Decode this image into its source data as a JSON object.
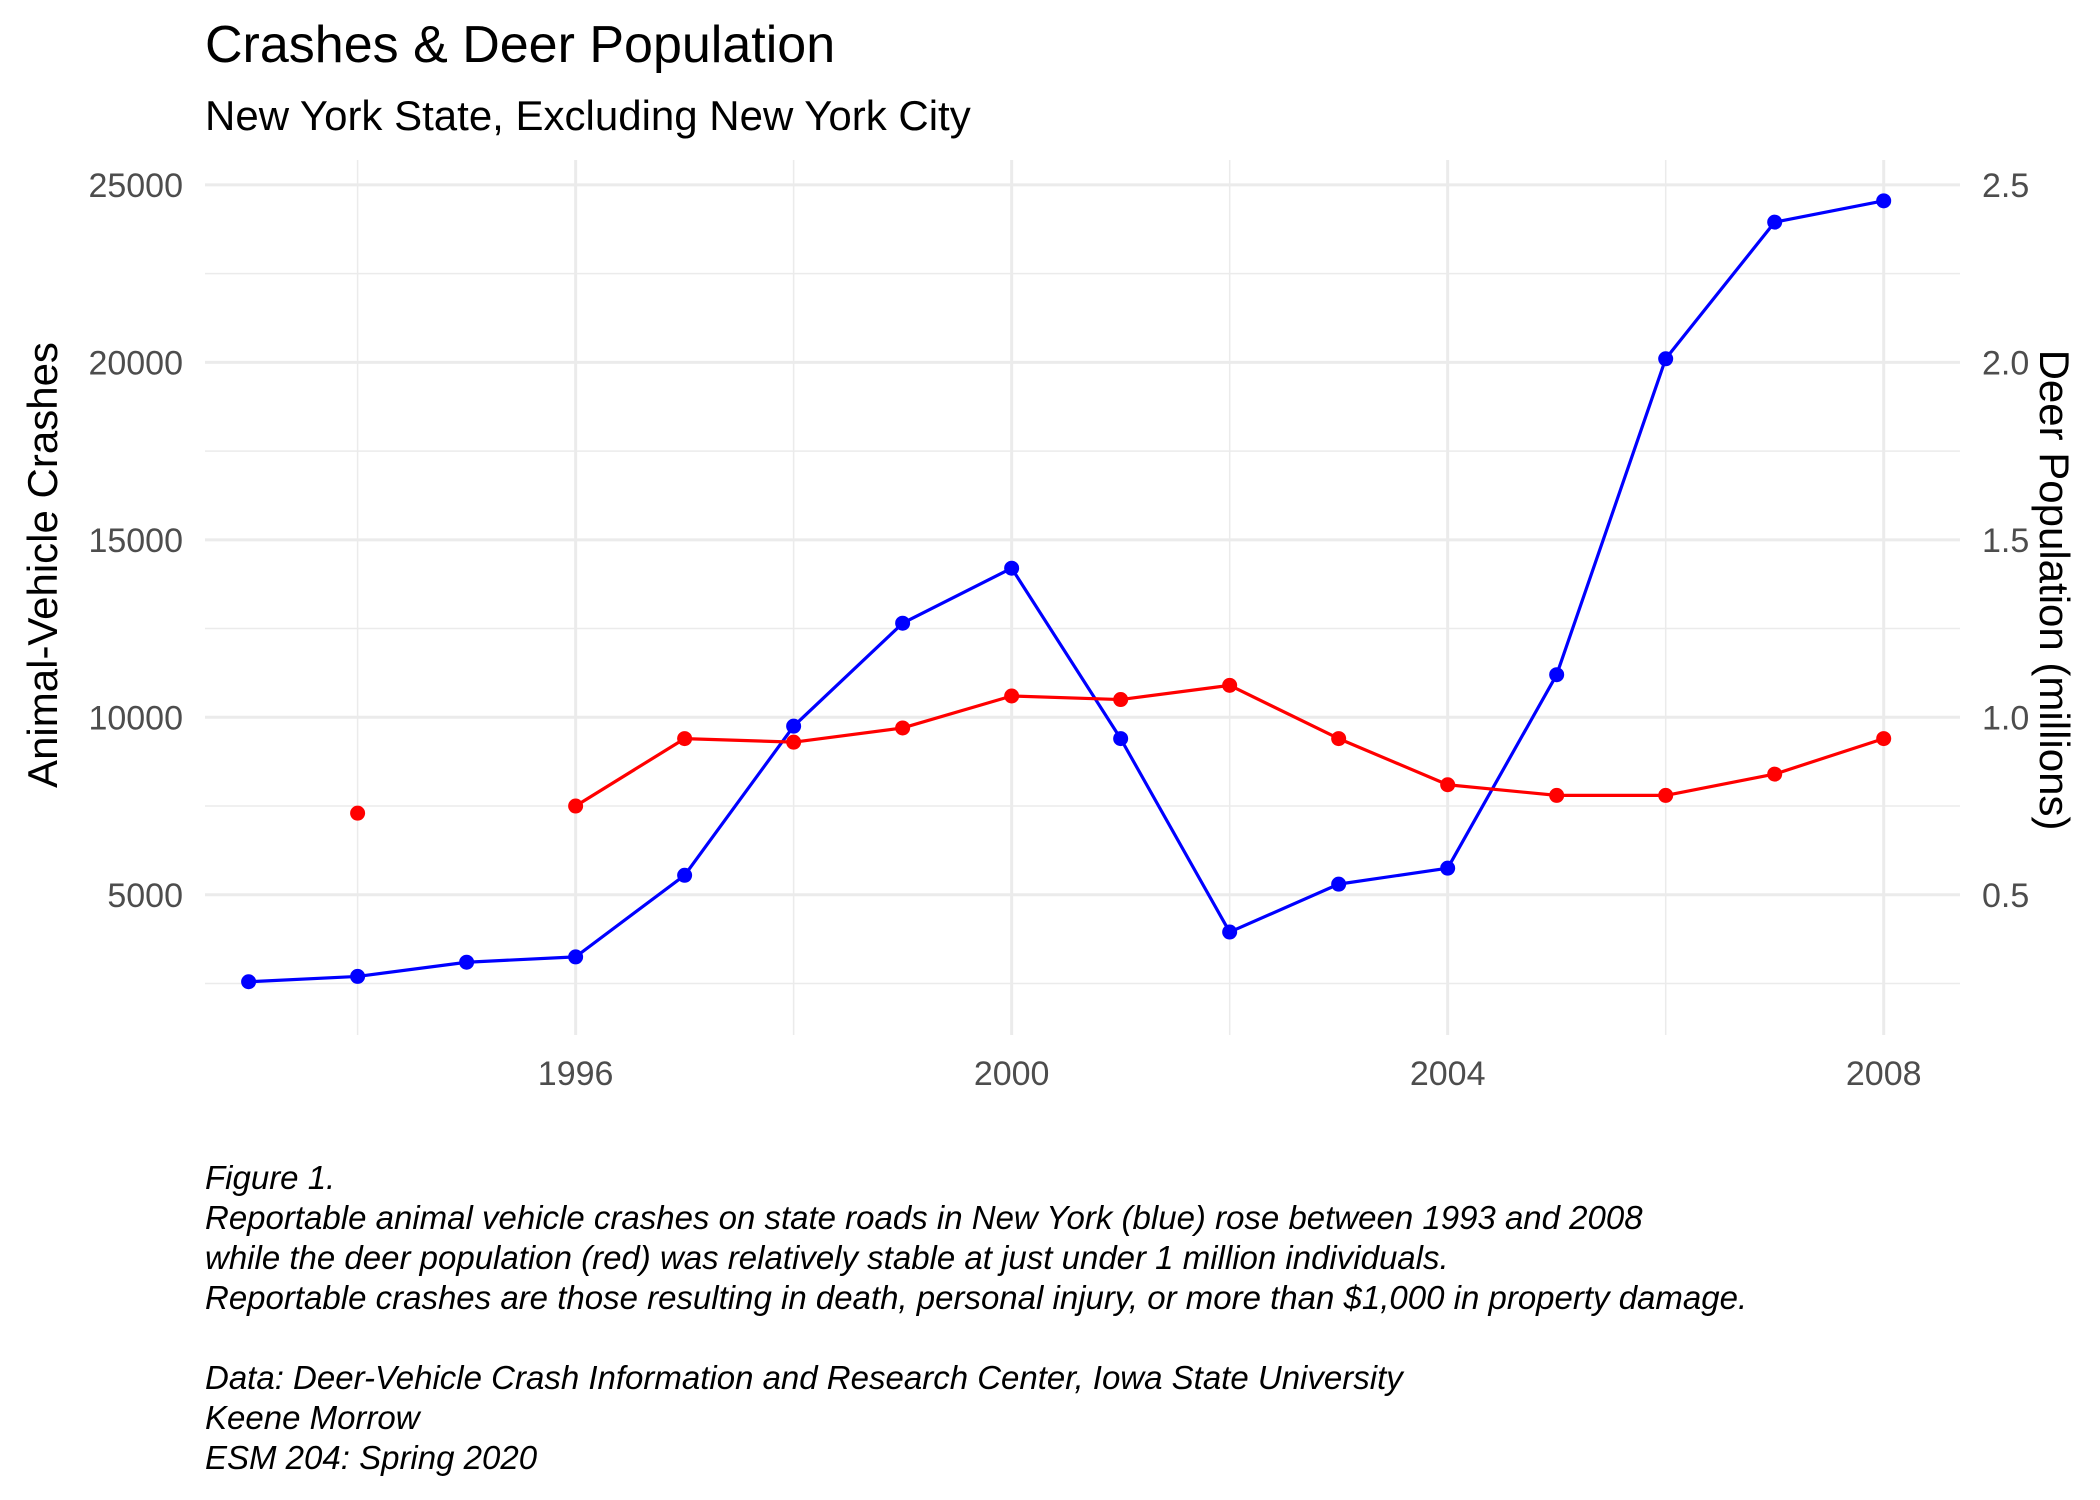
{
  "chart_data": {
    "type": "line",
    "title": "Crashes & Deer Population",
    "subtitle": "New York State, Excluding New York City",
    "xlabel": "",
    "ylabel": "Animal-Vehicle Crashes",
    "y2label": "Deer Population (millions)",
    "x_ticks": [
      1996,
      2000,
      2004,
      2008
    ],
    "y_ticks": [
      5000,
      10000,
      15000,
      20000,
      25000
    ],
    "y2_ticks": [
      "0.5",
      "1.0",
      "1.5",
      "2.0",
      "2.5"
    ],
    "xlim": [
      1992.6,
      2008.7
    ],
    "ylim": [
      1050,
      25700
    ],
    "y2lim": [
      0.105,
      2.57
    ],
    "grid": true,
    "series": [
      {
        "axis": "left",
        "color": "#0000ff",
        "x": [
          1993,
          1994,
          1995,
          1996,
          1997,
          1998,
          1999,
          2000,
          2001,
          2002,
          2003,
          2004,
          2005,
          2006,
          2007,
          2008
        ],
        "values": [
          2550,
          2700,
          3100,
          3250,
          5550,
          9750,
          12650,
          14200,
          9400,
          3950,
          5300,
          5750,
          11200,
          20100,
          23950,
          24550
        ]
      },
      {
        "axis": "right",
        "color": "#ff0000",
        "x": [
          1994,
          1996,
          1997,
          1998,
          1999,
          2000,
          2001,
          2002,
          2003,
          2004,
          2005,
          2006,
          2007,
          2008
        ],
        "values": [
          0.73,
          0.75,
          0.94,
          0.93,
          0.97,
          1.06,
          1.05,
          1.09,
          0.94,
          0.81,
          0.78,
          0.78,
          0.84,
          0.94
        ],
        "gaps_after_x": [
          1994
        ]
      }
    ]
  },
  "caption": {
    "lines": [
      "Figure 1.",
      "Reportable animal vehicle crashes on state roads in New York (blue) rose between 1993 and 2008",
      "while the deer population (red) was relatively stable at just under 1 million individuals.",
      "Reportable crashes are those resulting in death, personal injury, or more than $1,000 in property damage.",
      "",
      "Data: Deer-Vehicle Crash Information and Research Center, Iowa State University",
      "Keene Morrow",
      "ESM 204: Spring 2020"
    ]
  }
}
